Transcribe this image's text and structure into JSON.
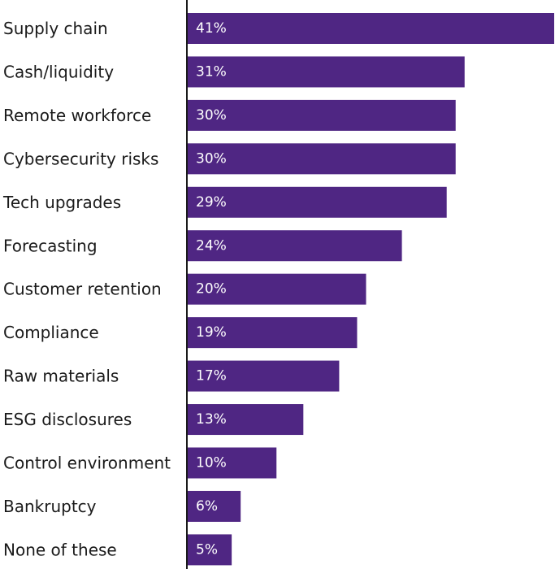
{
  "chart_data": {
    "type": "bar",
    "orientation": "horizontal",
    "title": "",
    "xlabel": "",
    "ylabel": "",
    "xlim": [
      0,
      41
    ],
    "grid": false,
    "legend": "none",
    "bar_color": "#4f2683",
    "categories": [
      "Supply chain",
      "Cash/liquidity",
      "Remote workforce",
      "Cybersecurity risks",
      "Tech upgrades",
      "Forecasting",
      "Customer retention",
      "Compliance",
      "Raw materials",
      "ESG disclosures",
      "Control environment",
      "Bankruptcy",
      "None of these"
    ],
    "values": [
      41,
      31,
      30,
      30,
      29,
      24,
      20,
      19,
      17,
      13,
      10,
      6,
      5
    ],
    "value_labels": [
      "41%",
      "31%",
      "30%",
      "30%",
      "29%",
      "24%",
      "20%",
      "19%",
      "17%",
      "13%",
      "10%",
      "6%",
      "5%"
    ]
  }
}
